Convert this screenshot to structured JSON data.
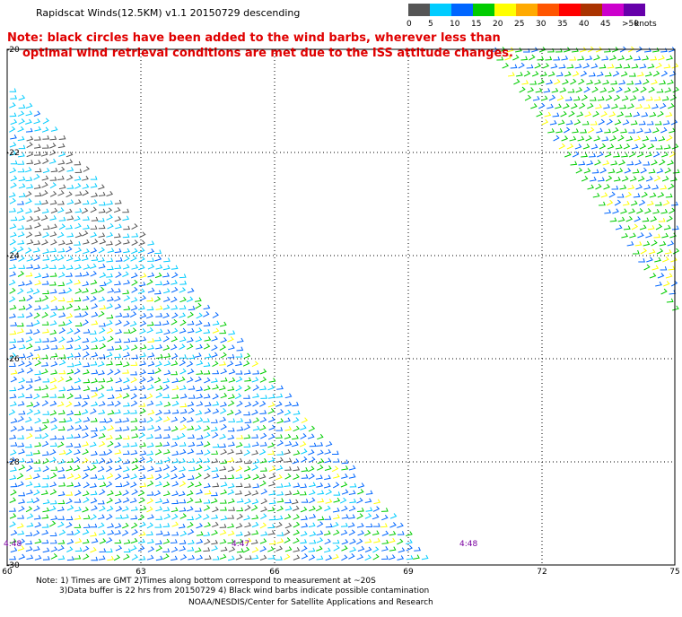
{
  "title": "Rapidscat Winds(12.5KM) v1.1 20150729 descending",
  "note": {
    "line1": "Note: black circles have been added to the wind barbs, wherever less than",
    "line2": "optimal wind retrieval conditions are met due to the ISS attitude changes."
  },
  "colorbar": {
    "units": "knots",
    "labels": [
      "0",
      "5",
      "10",
      "15",
      "20",
      "25",
      "30",
      "35",
      "40",
      "45",
      ">50"
    ],
    "colors": [
      "#555555",
      "#00ccff",
      "#0066ff",
      "#00cc00",
      "#ffff00",
      "#ffaa00",
      "#ff5500",
      "#ff0000",
      "#aa3300",
      "#cc00cc",
      "#6600aa"
    ]
  },
  "axes": {
    "x_ticks": [
      "60",
      "63",
      "66",
      "69",
      "72",
      "75"
    ],
    "y_ticks": [
      "-20",
      "-22",
      "-24",
      "-26",
      "-28",
      "-30"
    ]
  },
  "times": [
    "4:48",
    "4:47",
    "4:48"
  ],
  "footnote": {
    "line1": "Note: 1) Times are GMT 2)Times along bottom correspond to measurement at ~20S",
    "line2": "3)Data buffer is 22 hrs from 20150729 4) Black wind barbs indicate possible contamination"
  },
  "credit": "NOAA/NESDIS/Center for Satellite Applications and Research"
}
